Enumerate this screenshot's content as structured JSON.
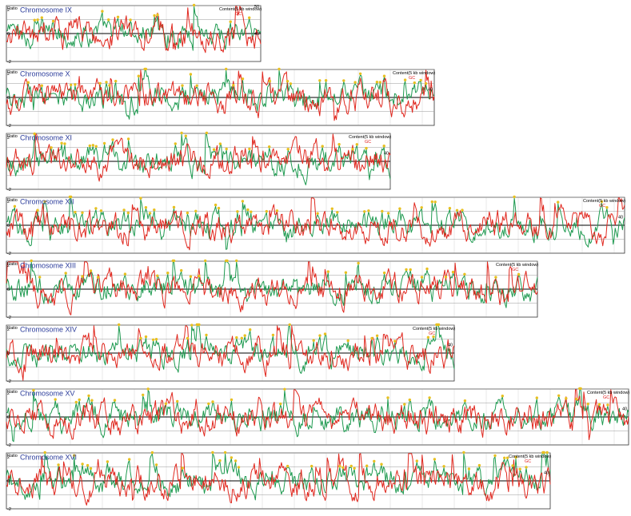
{
  "colors": {
    "ratio_series": "#1e9a50",
    "gc_series": "#e0271e",
    "markers": "#e8c020",
    "title": "#2b3c9b",
    "frame": "#333333"
  },
  "chart_data": [
    {
      "type": "line",
      "title": "Chromosome IX",
      "ylabel": "Ratio",
      "right_label": "Content(5 kb window)",
      "right_sublabel": "GC",
      "y_ticks": [
        "2",
        "0",
        "-2"
      ],
      "right_ticks": [
        "50",
        "40"
      ],
      "ylim": [
        -2,
        2
      ],
      "gc_ylim": [
        30,
        50
      ],
      "series": [
        {
          "name": "Ratio",
          "values": []
        },
        {
          "name": "GC",
          "values": []
        }
      ]
    },
    {
      "type": "line",
      "title": "Chromosome X",
      "ylabel": "Ratio",
      "right_label": "Content(5 kb window)",
      "right_sublabel": "GC",
      "y_ticks": [
        "2",
        "0",
        "-2"
      ],
      "right_ticks": [
        "40"
      ],
      "ylim": [
        -2,
        2
      ],
      "gc_ylim": [
        30,
        50
      ],
      "series": [
        {
          "name": "Ratio",
          "values": []
        },
        {
          "name": "GC",
          "values": []
        }
      ]
    },
    {
      "type": "line",
      "title": "Chromosome XI",
      "ylabel": "Ratio",
      "right_label": "Content(5 kb window)",
      "right_sublabel": "GC",
      "y_ticks": [
        "2",
        "0",
        "-2"
      ],
      "right_ticks": [
        "40"
      ],
      "ylim": [
        -2,
        2
      ],
      "gc_ylim": [
        30,
        50
      ],
      "series": [
        {
          "name": "Ratio",
          "values": []
        },
        {
          "name": "GC",
          "values": []
        }
      ]
    },
    {
      "type": "line",
      "title": "Chromosome XII",
      "ylabel": "Ratio",
      "right_label": "Content(5 kb window)",
      "right_sublabel": "GC",
      "y_ticks": [
        "2",
        "0",
        "-2"
      ],
      "right_ticks": [
        "40"
      ],
      "ylim": [
        -2,
        2
      ],
      "gc_ylim": [
        30,
        50
      ],
      "series": [
        {
          "name": "Ratio",
          "values": []
        },
        {
          "name": "GC",
          "values": []
        }
      ]
    },
    {
      "type": "line",
      "title": "Chromosome XIII",
      "ylabel": "Ratio",
      "right_label": "Content(5 kb window)",
      "right_sublabel": "GC",
      "y_ticks": [
        "2",
        "0",
        "-2"
      ],
      "right_ticks": [],
      "ylim": [
        -2,
        2
      ],
      "gc_ylim": [
        30,
        50
      ],
      "series": [
        {
          "name": "Ratio",
          "values": []
        },
        {
          "name": "GC",
          "values": []
        }
      ]
    },
    {
      "type": "line",
      "title": "Chromosome XIV",
      "ylabel": "Ratio",
      "right_label": "Content(5 kb window)",
      "right_sublabel": "GC",
      "y_ticks": [
        "2",
        "0",
        "-2"
      ],
      "right_ticks": [
        "40"
      ],
      "ylim": [
        -2,
        2
      ],
      "gc_ylim": [
        30,
        50
      ],
      "series": [
        {
          "name": "Ratio",
          "values": []
        },
        {
          "name": "GC",
          "values": []
        }
      ]
    },
    {
      "type": "line",
      "title": "Chromosome XV",
      "ylabel": "Ratio",
      "right_label": "Content(5 kb window)",
      "right_sublabel": "GC",
      "y_ticks": [
        "2",
        "0",
        "-2"
      ],
      "right_ticks": [
        "40"
      ],
      "ylim": [
        -2,
        2
      ],
      "gc_ylim": [
        30,
        50
      ],
      "series": [
        {
          "name": "Ratio",
          "values": []
        },
        {
          "name": "GC",
          "values": []
        }
      ]
    },
    {
      "type": "line",
      "title": "Chromosome XVI",
      "ylabel": "Ratio",
      "right_label": "Content(5 kb window)",
      "right_sublabel": "GC",
      "y_ticks": [
        "2",
        "0",
        "-2"
      ],
      "right_ticks": [
        "40"
      ],
      "ylim": [
        -2,
        2
      ],
      "gc_ylim": [
        30,
        50
      ],
      "series": [
        {
          "name": "Ratio",
          "values": []
        },
        {
          "name": "GC",
          "values": []
        }
      ]
    }
  ]
}
